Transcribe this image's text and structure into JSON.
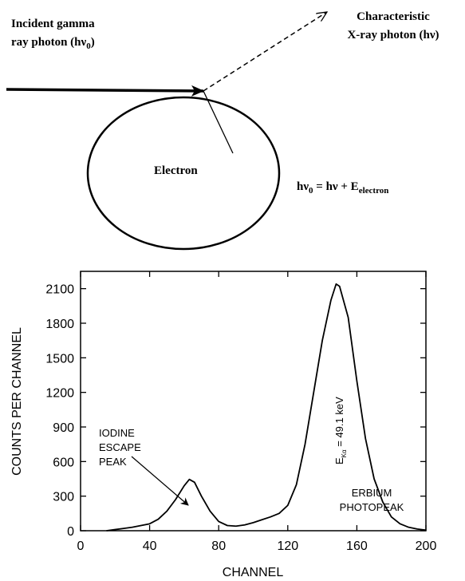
{
  "diagram": {
    "incident": {
      "line1": "Incident gamma",
      "line2": "ray photon (hν",
      "sub": "0",
      "close": ")"
    },
    "xray": {
      "line1": "Characteristic",
      "line2": "X-ray photon (hν)"
    },
    "electron": "Electron",
    "equation": {
      "a": "hν",
      "a_sub": "0",
      "b": " = hν + E",
      "b_sub": "electron"
    }
  },
  "chart_data": {
    "type": "line",
    "x_label": "CHANNEL",
    "y_label": "COUNTS PER CHANNEL",
    "x": [
      15,
      20,
      25,
      30,
      35,
      40,
      45,
      50,
      55,
      60,
      63,
      66,
      70,
      75,
      80,
      85,
      90,
      95,
      100,
      105,
      110,
      115,
      120,
      125,
      130,
      135,
      140,
      145,
      148,
      150,
      155,
      160,
      165,
      170,
      175,
      180,
      185,
      190,
      195,
      200
    ],
    "series": [
      {
        "color": "#000000",
        "values": [
          0,
          10,
          20,
          30,
          45,
          60,
          100,
          170,
          270,
          390,
          445,
          420,
          300,
          170,
          80,
          45,
          40,
          50,
          70,
          95,
          120,
          150,
          220,
          400,
          750,
          1200,
          1650,
          2000,
          2140,
          2120,
          1850,
          1300,
          800,
          450,
          250,
          120,
          60,
          30,
          15,
          5
        ]
      }
    ],
    "xlim": [
      0,
      200
    ],
    "xticks": [
      0,
      40,
      80,
      120,
      160,
      200
    ],
    "ylim": [
      0,
      2250
    ],
    "yticks": [
      0,
      300,
      600,
      900,
      1200,
      1500,
      1800,
      2100
    ],
    "annotations": {
      "iodine": [
        "IODINE",
        "ESCAPE",
        "PEAK"
      ],
      "erbium": [
        "ERBIUM",
        "PHOTOPEAK"
      ],
      "energy": {
        "main": "E",
        "sub": "Kα",
        "rest": " = 49.1 keV"
      }
    }
  }
}
